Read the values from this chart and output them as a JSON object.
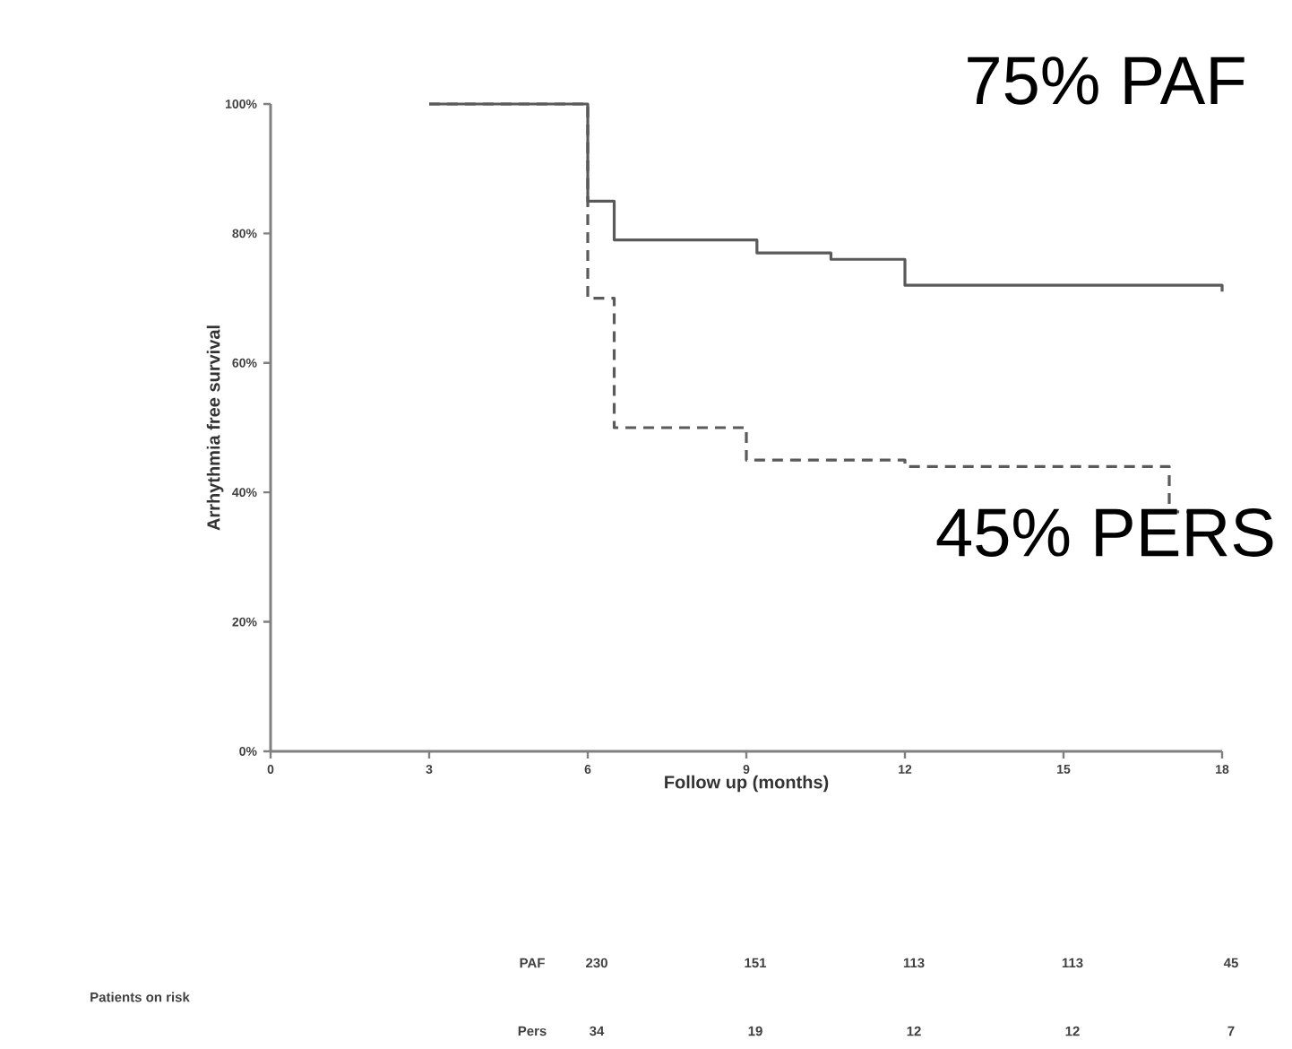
{
  "chart_data": {
    "type": "step",
    "xlabel": "Follow up (months)",
    "ylabel": "Arrhythmia free survival",
    "xlim": [
      0,
      18
    ],
    "xticks": [
      0,
      3,
      6,
      9,
      12,
      15,
      18
    ],
    "ylim": [
      0,
      100
    ],
    "yticks": [
      {
        "value": 0,
        "label": "0%"
      },
      {
        "value": 20,
        "label": "20%"
      },
      {
        "value": 40,
        "label": "40%"
      },
      {
        "value": 60,
        "label": "60%"
      },
      {
        "value": 80,
        "label": "80%"
      },
      {
        "value": 100,
        "label": "100%"
      }
    ],
    "marker": "none",
    "grid": false,
    "series": [
      {
        "color": "#5a5a5a",
        "line_style": "solid",
        "x": [
          3,
          6,
          6.5,
          9.2,
          10.6,
          12,
          18
        ],
        "values": [
          100,
          85,
          79,
          77,
          76,
          72,
          71
        ]
      },
      {
        "color": "#5a5a5a",
        "line_style": "dashed",
        "x": [
          3,
          6,
          6.5,
          9,
          12,
          17,
          18
        ],
        "values": [
          100,
          70,
          50,
          45,
          44,
          37,
          37
        ]
      }
    ],
    "annotations": [
      "75% PAF",
      "45% PERS",
      "Patients on risk",
      "PAF",
      "230",
      "151",
      "113",
      "113",
      "45",
      "Pers",
      "34",
      "19",
      "12",
      "12",
      "7"
    ]
  }
}
